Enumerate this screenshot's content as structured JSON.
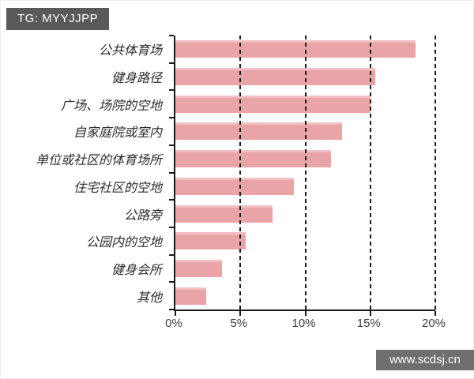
{
  "badge": {
    "label": "TG: MYYJJPP"
  },
  "watermark": {
    "label": "www.scdsj.cn"
  },
  "colors": {
    "bar": "#e9a4a8",
    "bar_highlight": "#f2bfc2",
    "axis": "#1a1a1a",
    "badge_bg": "#595959",
    "watermark_bg": "#6f6f6f"
  },
  "chart_data": {
    "type": "bar",
    "orientation": "horizontal",
    "title": "",
    "categories": [
      "公共体育场",
      "健身路径",
      "广场、场院的空地",
      "自家庭院或室内",
      "单位或社区的体育场所",
      "住宅社区的空地",
      "公路旁",
      "公园内的空地",
      "健身会所",
      "其他"
    ],
    "values": [
      18.5,
      15.4,
      15.0,
      12.8,
      12.0,
      9.1,
      7.5,
      5.4,
      3.6,
      2.4
    ],
    "unit": "%",
    "x_tick_labels": [
      "0%",
      "5%",
      "10%",
      "15%",
      "20%"
    ],
    "x_tick_values": [
      0,
      5,
      10,
      15,
      20
    ],
    "xlim": [
      0,
      20
    ],
    "grid": "vertical-dashed",
    "legend": "none"
  }
}
